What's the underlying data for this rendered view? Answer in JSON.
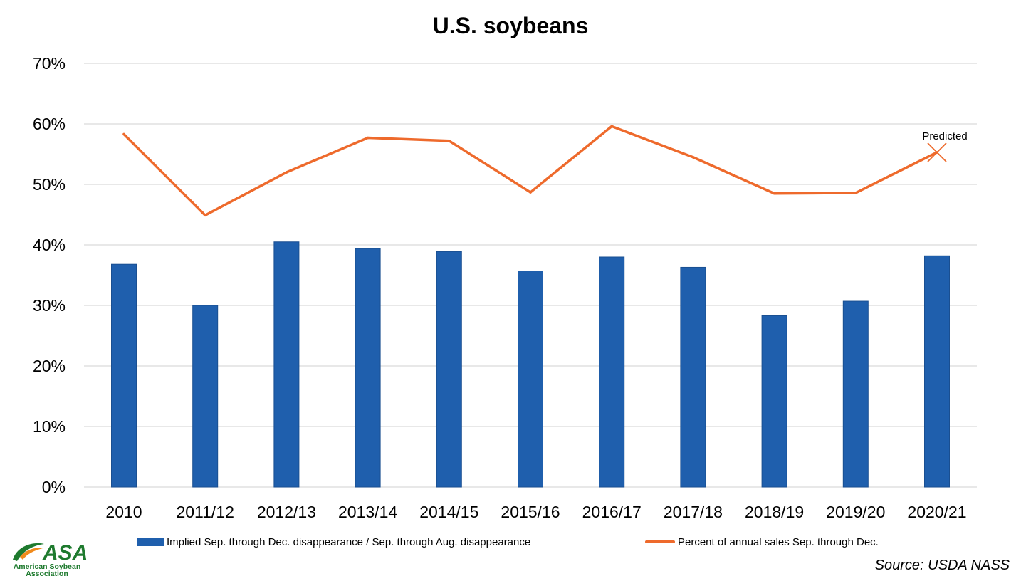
{
  "chart_data": {
    "type": "bar",
    "title": "U.S. soybeans",
    "categories": [
      "2010",
      "2011/12",
      "2012/13",
      "2013/14",
      "2014/15",
      "2015/16",
      "2016/17",
      "2017/18",
      "2018/19",
      "2019/20",
      "2020/21"
    ],
    "series": [
      {
        "name": "Implied Sep. through Dec. disappearance / Sep. through Aug. disappearance",
        "type": "bar",
        "color": "#1f5fad",
        "values": [
          36.8,
          30.0,
          40.5,
          39.4,
          38.9,
          35.7,
          38.0,
          36.3,
          28.3,
          30.7,
          38.2
        ]
      },
      {
        "name": "Percent of annual sales Sep. through Dec.",
        "type": "line",
        "color": "#ee6a2c",
        "values": [
          58.3,
          44.9,
          52.0,
          57.7,
          57.2,
          48.7,
          59.6,
          54.5,
          48.5,
          48.6,
          55.3
        ],
        "predicted_index": 10,
        "predicted_label": "Predicted"
      }
    ],
    "ylim": [
      0,
      70
    ],
    "yticks": [
      0,
      10,
      20,
      30,
      40,
      50,
      60,
      70
    ],
    "ytick_suffix": "%",
    "grid": true,
    "legend": "bottom"
  },
  "footer": {
    "source": "Source: USDA NASS"
  },
  "logo": {
    "mark": "ASA",
    "name_line1": "American Soybean",
    "name_line2": "Association",
    "icon": "leaf-swoosh-icon",
    "color": "#1e7a2e",
    "accent": "#f08a1c"
  }
}
